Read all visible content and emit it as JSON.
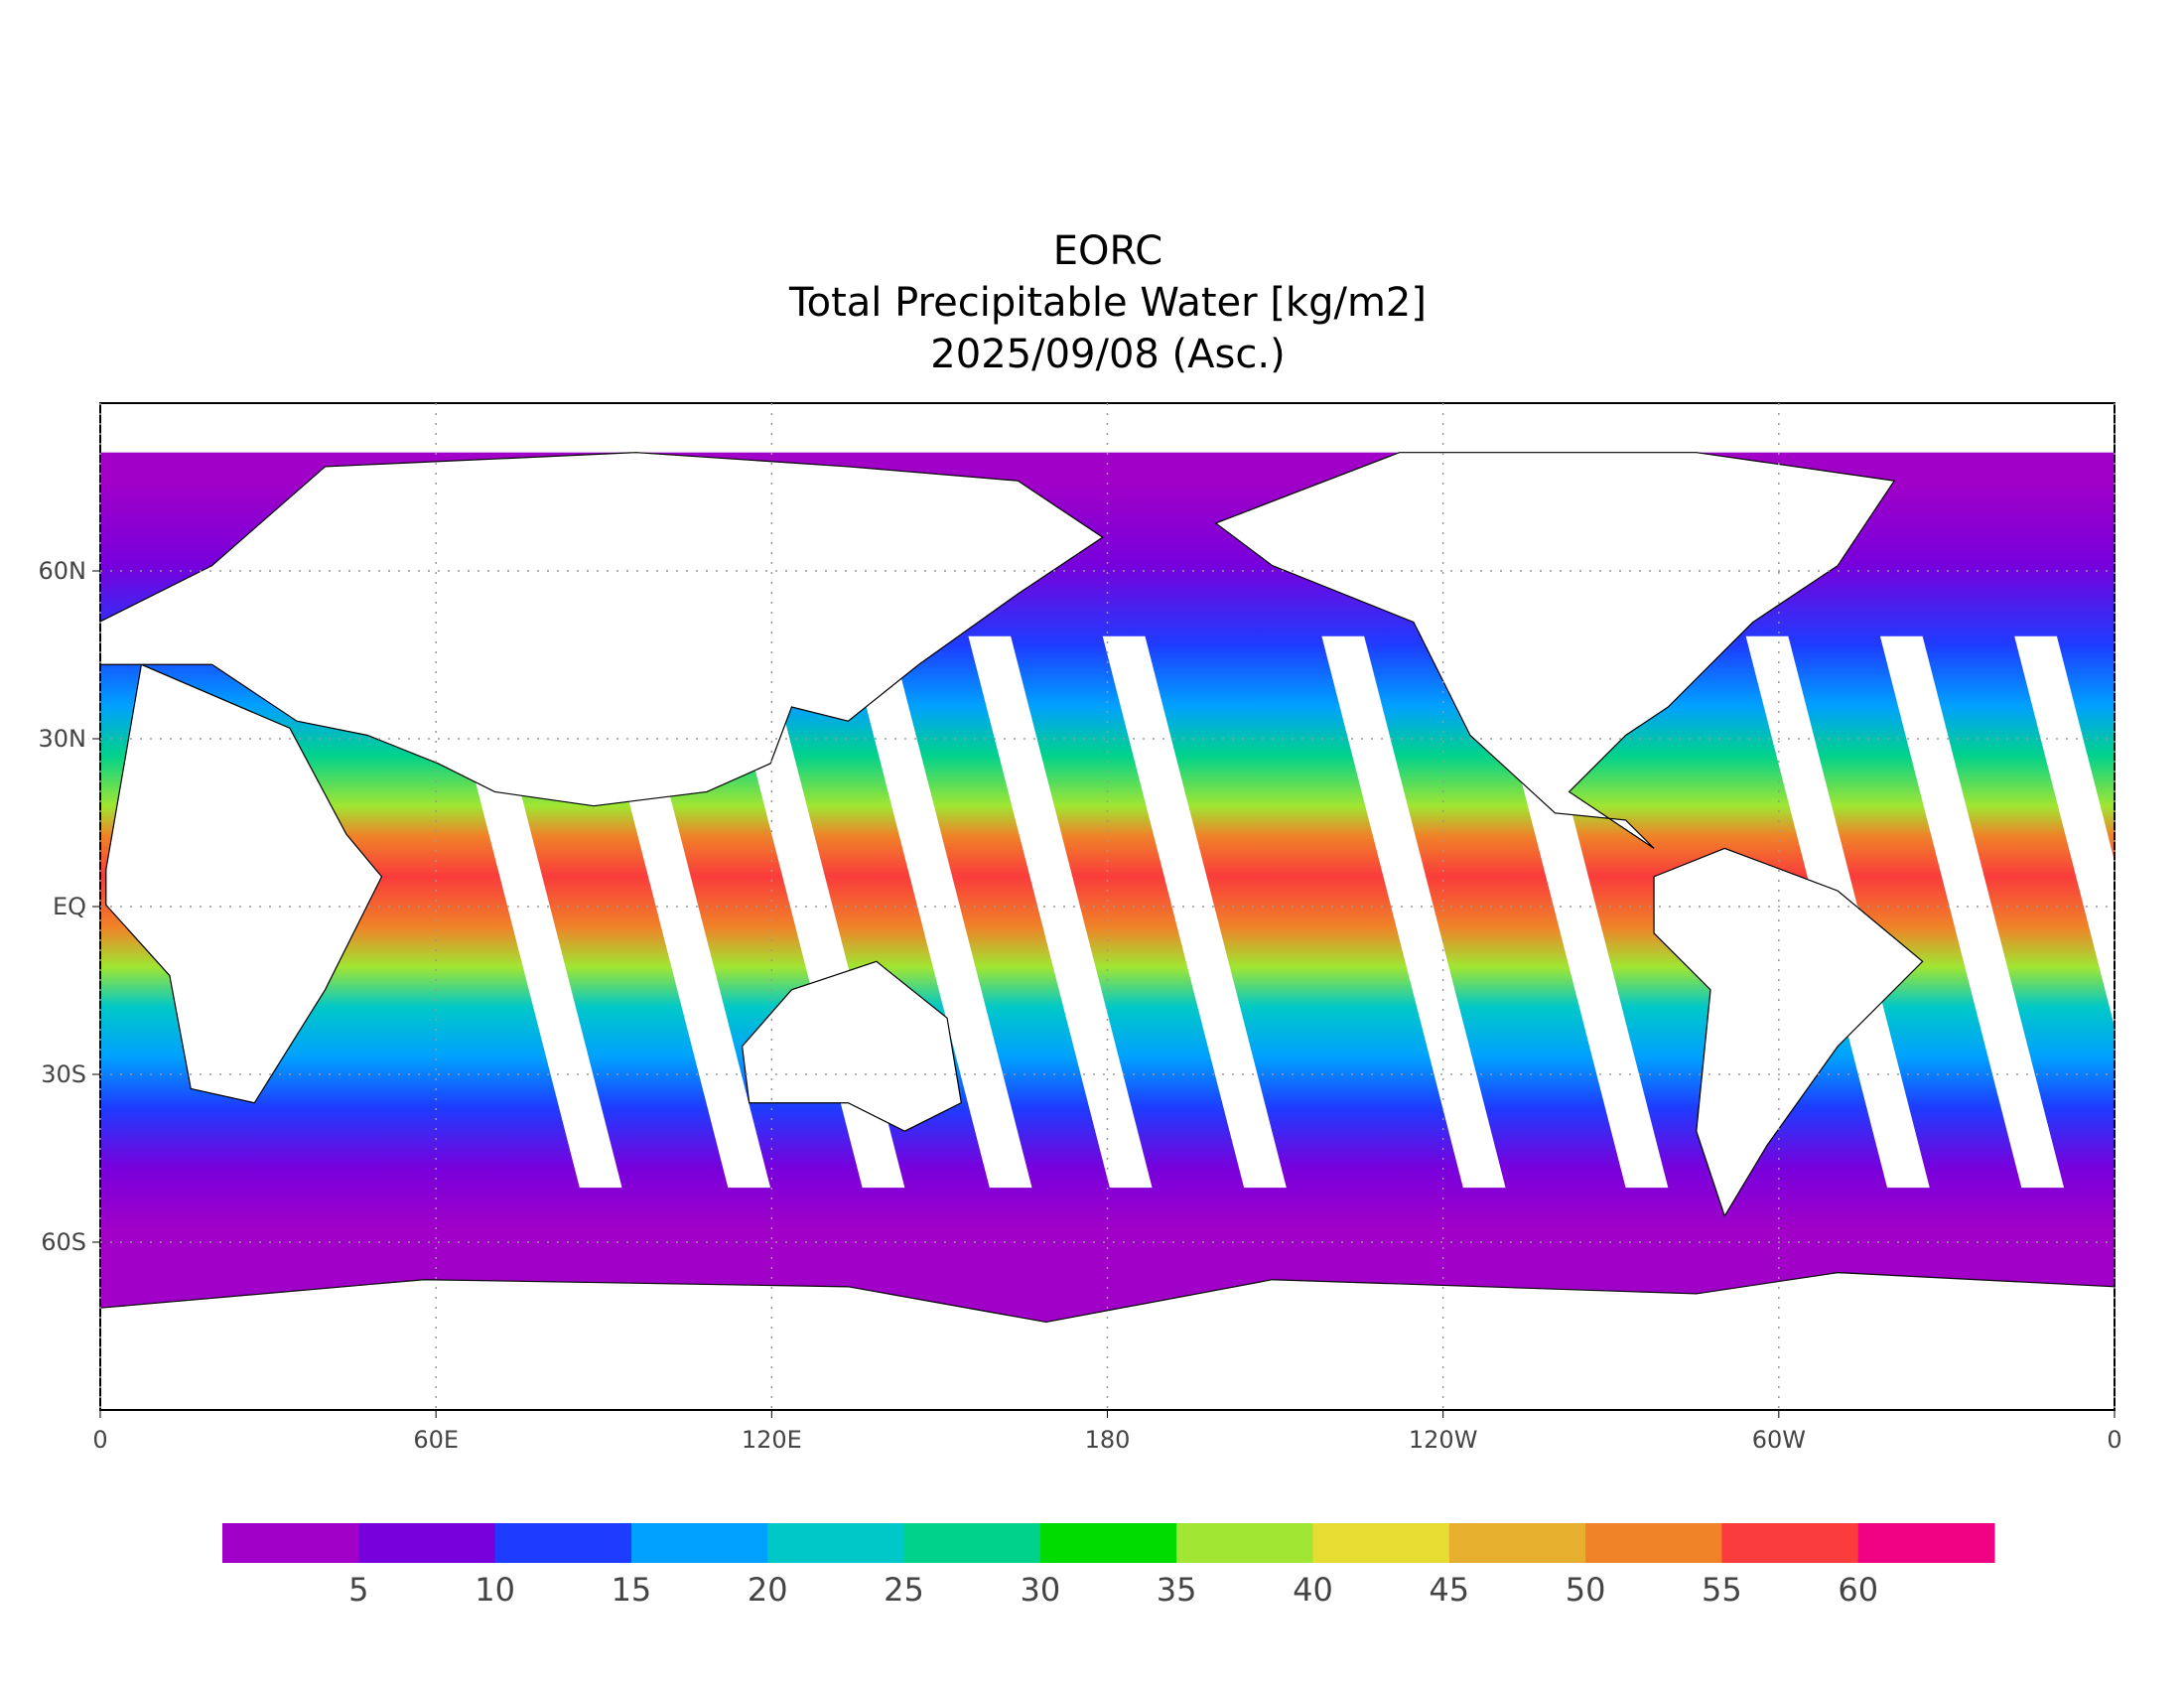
{
  "title": {
    "lines": [
      "EORC",
      "Total Precipitable Water [kg/m2]",
      "2025/09/08 (Asc.)"
    ]
  },
  "map": {
    "x_ticks": [
      "0",
      "60E",
      "120E",
      "180",
      "120W",
      "60W",
      "0"
    ],
    "y_ticks": [
      "60N",
      "30N",
      "EQ",
      "30S",
      "60S"
    ]
  },
  "colorbar": {
    "colors": [
      "#a000c8",
      "#7800dc",
      "#1e3cff",
      "#00a0ff",
      "#00c8c8",
      "#00d28c",
      "#00dc00",
      "#a0e632",
      "#e6dc32",
      "#e6af2d",
      "#f08228",
      "#fa3c3c",
      "#f00082"
    ],
    "labels": [
      "5",
      "10",
      "15",
      "20",
      "25",
      "30",
      "35",
      "40",
      "45",
      "50",
      "55",
      "60"
    ]
  }
}
